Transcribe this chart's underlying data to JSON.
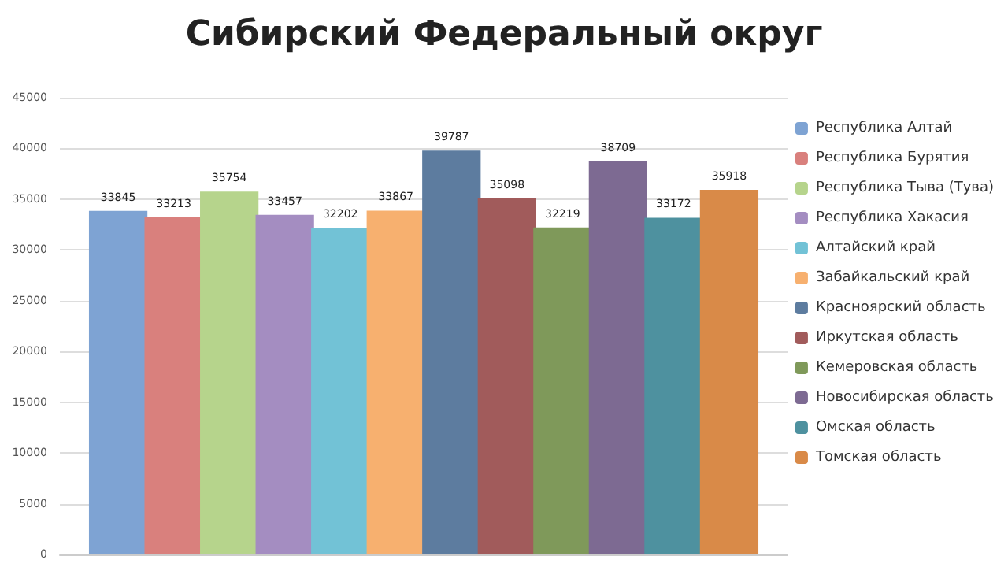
{
  "chart_data": {
    "type": "bar",
    "title": "Сибирский Федеральный округ",
    "categories": [
      null
    ],
    "series": [
      {
        "name": "Республика Алтай",
        "color": "#7ea3d3",
        "values": [
          33845
        ]
      },
      {
        "name": "Республика Бурятия",
        "color": "#d9807d",
        "values": [
          33213
        ]
      },
      {
        "name": "Республика Тыва (Тува)",
        "color": "#b6d48c",
        "values": [
          35754
        ]
      },
      {
        "name": "Республика Хакасия",
        "color": "#a48dc1",
        "values": [
          33457
        ]
      },
      {
        "name": "Алтайский край",
        "color": "#72c2d6",
        "values": [
          32202
        ]
      },
      {
        "name": "Забайкальский край",
        "color": "#f7b06f",
        "values": [
          33867
        ]
      },
      {
        "name": "Красноярский область",
        "color": "#5d7c9f",
        "values": [
          39787
        ]
      },
      {
        "name": "Иркутская область",
        "color": "#a15b5b",
        "values": [
          35098
        ]
      },
      {
        "name": "Кемеровская область",
        "color": "#7f995a",
        "values": [
          32219
        ]
      },
      {
        "name": "Новосибирская область",
        "color": "#7d6a92",
        "values": [
          38709
        ]
      },
      {
        "name": "Омская область",
        "color": "#4e919f",
        "values": [
          33172
        ]
      },
      {
        "name": "Томская область",
        "color": "#d98a48",
        "values": [
          35918
        ]
      }
    ],
    "ylim": [
      0,
      45000
    ],
    "yticks": [
      0,
      5000,
      10000,
      15000,
      20000,
      25000,
      30000,
      35000,
      40000,
      45000
    ],
    "grid": "y",
    "legend": "right",
    "data_labels": true
  }
}
